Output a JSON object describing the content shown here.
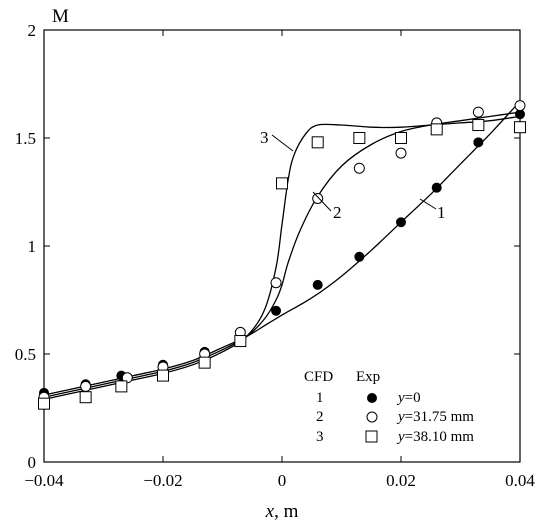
{
  "chart_data": {
    "type": "line",
    "xlabel_var": "x",
    "xlabel_unit": ", m",
    "ylabel": "M",
    "xlim": [
      -0.04,
      0.04
    ],
    "ylim": [
      0,
      2
    ],
    "x_ticks": [
      -0.04,
      -0.02,
      0,
      0.02,
      0.04
    ],
    "x_tick_labels": [
      "−0.04",
      "−0.02",
      "0",
      "0.02",
      "0.04"
    ],
    "y_ticks": [
      0,
      0.5,
      1,
      1.5,
      2
    ],
    "y_tick_labels": [
      "0",
      "0.5",
      "1",
      "1.5",
      "2"
    ],
    "legend": {
      "header_cfd": "CFD",
      "header_exp": "Exp",
      "rows": [
        {
          "cfd": "1",
          "var": "y",
          "value": "=0"
        },
        {
          "cfd": "2",
          "var": "y",
          "value": "=31.75 mm"
        },
        {
          "cfd": "3",
          "var": "y",
          "value": "=38.10 mm"
        }
      ]
    },
    "cfd_series": [
      {
        "name": "1",
        "label": "1",
        "x": [
          -0.04,
          -0.035,
          -0.03,
          -0.025,
          -0.02,
          -0.015,
          -0.01,
          -0.006,
          -0.003,
          0,
          0.005,
          0.01,
          0.015,
          0.02,
          0.025,
          0.03,
          0.035,
          0.04
        ],
        "y": [
          0.31,
          0.34,
          0.37,
          0.4,
          0.43,
          0.47,
          0.53,
          0.58,
          0.63,
          0.68,
          0.76,
          0.86,
          0.98,
          1.11,
          1.24,
          1.38,
          1.52,
          1.67
        ]
      },
      {
        "name": "2",
        "label": "2",
        "x": [
          -0.04,
          -0.035,
          -0.03,
          -0.025,
          -0.02,
          -0.015,
          -0.01,
          -0.006,
          -0.003,
          -0.001,
          0,
          0.001,
          0.003,
          0.006,
          0.01,
          0.015,
          0.02,
          0.025,
          0.03,
          0.035,
          0.04
        ],
        "y": [
          0.3,
          0.33,
          0.36,
          0.39,
          0.42,
          0.46,
          0.52,
          0.58,
          0.66,
          0.75,
          0.82,
          0.92,
          1.07,
          1.23,
          1.37,
          1.47,
          1.53,
          1.56,
          1.58,
          1.6,
          1.62
        ]
      },
      {
        "name": "3",
        "label": "3",
        "x": [
          -0.04,
          -0.035,
          -0.03,
          -0.025,
          -0.02,
          -0.015,
          -0.01,
          -0.006,
          -0.003,
          -0.001,
          0,
          0.001,
          0.002,
          0.004,
          0.006,
          0.01,
          0.015,
          0.02,
          0.025,
          0.03,
          0.035,
          0.04
        ],
        "y": [
          0.29,
          0.32,
          0.35,
          0.38,
          0.41,
          0.45,
          0.51,
          0.58,
          0.7,
          0.9,
          1.1,
          1.3,
          1.42,
          1.52,
          1.56,
          1.56,
          1.55,
          1.55,
          1.56,
          1.57,
          1.58,
          1.6
        ]
      }
    ],
    "exp_series": [
      {
        "name": "1",
        "marker": "filled-circle",
        "x": [
          -0.04,
          -0.033,
          -0.027,
          -0.02,
          -0.013,
          -0.007,
          -0.001,
          0.006,
          0.013,
          0.02,
          0.026,
          0.033,
          0.04
        ],
        "y": [
          0.32,
          0.36,
          0.4,
          0.45,
          0.51,
          0.6,
          0.7,
          0.82,
          0.95,
          1.11,
          1.27,
          1.48,
          1.61
        ]
      },
      {
        "name": "2",
        "marker": "open-circle",
        "x": [
          -0.04,
          -0.033,
          -0.026,
          -0.02,
          -0.013,
          -0.007,
          -0.001,
          0.006,
          0.013,
          0.02,
          0.026,
          0.033,
          0.04
        ],
        "y": [
          0.3,
          0.35,
          0.39,
          0.44,
          0.5,
          0.6,
          0.83,
          1.22,
          1.36,
          1.43,
          1.57,
          1.62,
          1.65
        ]
      },
      {
        "name": "3",
        "marker": "open-square",
        "x": [
          -0.04,
          -0.033,
          -0.027,
          -0.02,
          -0.013,
          -0.007,
          0.0,
          0.006,
          0.013,
          0.02,
          0.026,
          0.033,
          0.04
        ],
        "y": [
          0.27,
          0.3,
          0.35,
          0.4,
          0.46,
          0.56,
          1.29,
          1.48,
          1.5,
          1.5,
          1.54,
          1.56,
          1.55
        ]
      }
    ]
  }
}
